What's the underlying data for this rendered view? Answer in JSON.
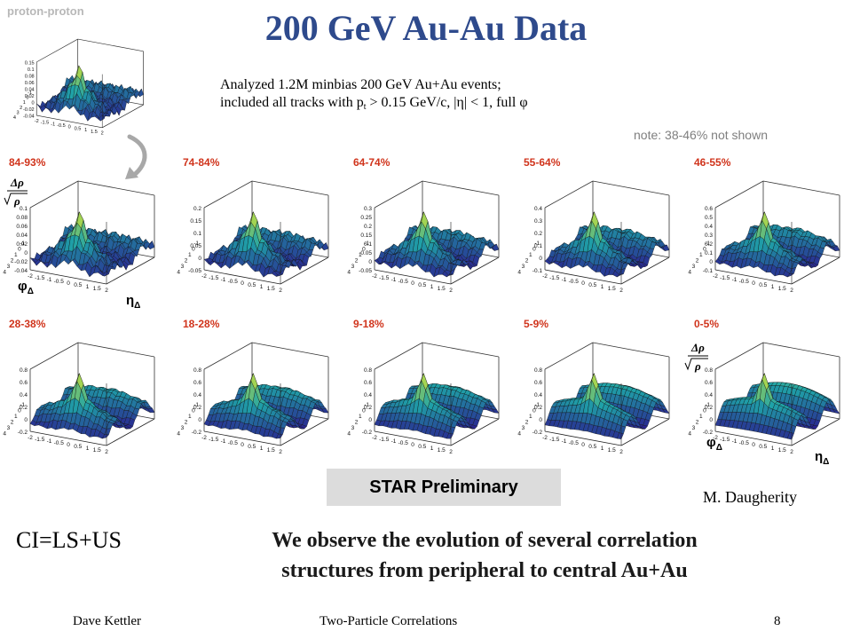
{
  "title": "200 GeV Au-Au Data",
  "proton_label": "proton-proton",
  "summary": {
    "line1": "Analyzed 1.2M minbias 200 GeV Au+Au events;",
    "line2_a": "included all tracks with p",
    "line2_sub": "t",
    "line2_b": " > 0.15 GeV/c, |η| < 1, full φ"
  },
  "note": "note: 38-46% not shown",
  "centralities_row1": [
    "84-93%",
    "74-84%",
    "64-74%",
    "55-64%",
    "46-55%"
  ],
  "centralities_row2": [
    "28-38%",
    "18-28%",
    "9-18%",
    "5-9%",
    "0-5%"
  ],
  "axis": {
    "phi": "φ",
    "eta": "η",
    "sub": "Δ",
    "ratio_num": "Δρ",
    "ratio_den": "ρ"
  },
  "tick_labels": {
    "eta": [
      "-2",
      "-1.5",
      "-1",
      "-0.5",
      "0",
      "0.5",
      "1",
      "1.5",
      "2"
    ],
    "phi": [
      "-1",
      "0",
      "1",
      "2",
      "3",
      "4"
    ]
  },
  "panels": {
    "pp": {
      "z": [
        "0.15",
        "0.1",
        "0.08",
        "0.06",
        "0.04",
        "0.02",
        "0",
        "-0.02",
        "-0.04"
      ]
    },
    "84-93%": {
      "z": [
        "0.1",
        "0.08",
        "0.06",
        "0.04",
        "0.02",
        "0",
        "-0.02",
        "-0.04"
      ]
    },
    "74-84%": {
      "z": [
        "0.2",
        "0.15",
        "0.1",
        "0.05",
        "0",
        "-0.05"
      ]
    },
    "64-74%": {
      "z": [
        "0.3",
        "0.25",
        "0.2",
        "0.15",
        "0.1",
        "0.05",
        "0",
        "-0.05"
      ]
    },
    "55-64%": {
      "z": [
        "0.4",
        "0.3",
        "0.2",
        "0.1",
        "0",
        "-0.1"
      ]
    },
    "46-55%": {
      "z": [
        "0.6",
        "0.5",
        "0.4",
        "0.3",
        "0.2",
        "0.1",
        "0",
        "-0.1"
      ]
    },
    "28-38%": {
      "z": [
        "0.8",
        "0.6",
        "0.4",
        "0.2",
        "0",
        "-0.2"
      ]
    },
    "18-28%": {
      "z": [
        "0.8",
        "0.6",
        "0.4",
        "0.2",
        "0",
        "-0.2"
      ]
    },
    "9-18%": {
      "z": [
        "0.8",
        "0.6",
        "0.4",
        "0.2",
        "0",
        "-0.2"
      ]
    },
    "5-9%": {
      "z": [
        "0.8",
        "0.6",
        "0.4",
        "0.2",
        "0",
        "-0.2"
      ]
    },
    "0-5%": {
      "z": [
        "0.8",
        "0.6",
        "0.4",
        "0.2",
        "0",
        "-0.2"
      ]
    }
  },
  "preliminary": "STAR Preliminary",
  "author": "M. Daugherity",
  "ci_formula": "CI=LS+US",
  "conclusion_line1": "We observe the evolution of several correlation",
  "conclusion_line2": "structures from peripheral to central Au+Au",
  "footer": {
    "left": "Dave Kettler",
    "center": "Two-Particle Correlations",
    "page": "8"
  },
  "colors": {
    "title": "#2e4a8c",
    "centrality": "#d0341c",
    "surface_low": "#2a1f8f",
    "surface_mid": "#1fa3a8",
    "surface_high": "#d8e830"
  }
}
